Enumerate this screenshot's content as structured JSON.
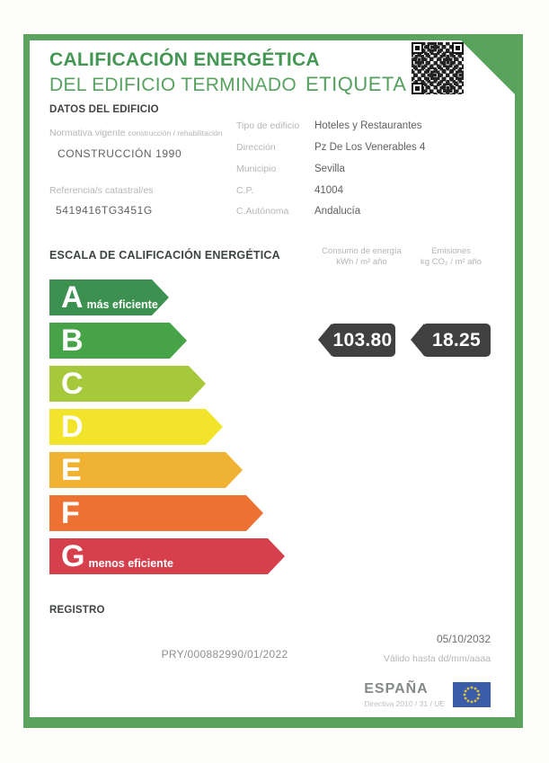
{
  "header": {
    "title_line1": "CALIFICACIÓN ENERGÉTICA",
    "title_line2": "DEL EDIFICIO TERMINADO",
    "etiqueta": "ETIQUETA"
  },
  "building": {
    "section_title": "DATOS DEL EDIFICIO",
    "normativa_label": "Normativa vigente",
    "normativa_sublabel": "construcción / rehabilitación",
    "normativa_value": "CONSTRUCCIÓN 1990",
    "catastral_label": "Referencia/s catastral/es",
    "catastral_value": "5419416TG3451G",
    "fields": [
      {
        "label": "Tipo de edificio",
        "value": "Hoteles y Restaurantes"
      },
      {
        "label": "Dirección",
        "value": "Pz De Los Venerables 4"
      },
      {
        "label": "Municipio",
        "value": "Sevilla"
      },
      {
        "label": "C.P.",
        "value": "41004"
      },
      {
        "label": "C.Autónoma",
        "value": "Andalucía"
      }
    ]
  },
  "scale": {
    "section_title": "ESCALA DE CALIFICACIÓN ENERGÉTICA",
    "consumo_header": "Consumo de energía",
    "consumo_units": "kWh / m² año",
    "emisiones_header": "Emisiones",
    "emisiones_units": "kg CO₂ / m² año",
    "consumo_value": "103.80",
    "emisiones_value": "18.25",
    "rating_letter": "B",
    "value_badge_color": "#404040",
    "ratings": [
      {
        "letter": "A",
        "note": "más eficiente",
        "color": "#3c9150"
      },
      {
        "letter": "B",
        "note": "",
        "color": "#47a347"
      },
      {
        "letter": "C",
        "note": "",
        "color": "#a6c93b"
      },
      {
        "letter": "D",
        "note": "",
        "color": "#f2e32b"
      },
      {
        "letter": "E",
        "note": "",
        "color": "#f0b233"
      },
      {
        "letter": "F",
        "note": "",
        "color": "#ed7132"
      },
      {
        "letter": "G",
        "note": "menos eficiente",
        "color": "#d6404d"
      }
    ]
  },
  "registro": {
    "section_title": "REGISTRO",
    "number": "PRY/000882990/01/2022",
    "valid_until_date": "05/10/2032",
    "valid_until_hint": "Válido hasta dd/mm/aaaa"
  },
  "footer": {
    "country": "ESPAÑA",
    "directive": "Directiva 2010 / 31 / UE"
  },
  "colors": {
    "frame_green": "#59a35e",
    "title_green": "#449753"
  }
}
